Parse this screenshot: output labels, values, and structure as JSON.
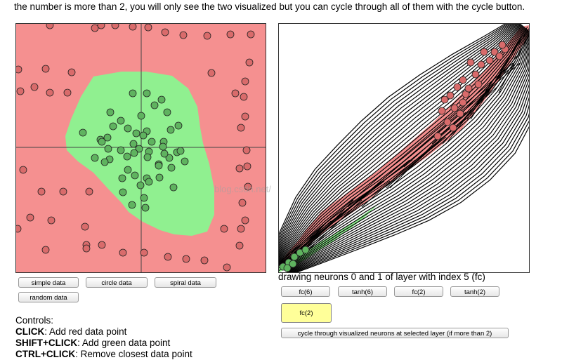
{
  "intro_text": "the number is more than 2, you will only see the two visualized but you can cycle through all of them with the cycle button.",
  "data_buttons": [
    "simple data",
    "circle data",
    "spiral data",
    "random data"
  ],
  "layer_caption": "drawing neurons 0 and 1 of layer with index 5 (fc)",
  "layer_buttons": [
    "fc(6)",
    "tanh(6)",
    "fc(2)",
    "tanh(2)"
  ],
  "selected_layer_button": "fc(2)",
  "cycle_button": "cycle through visualized neurons at selected layer (if more than 2)",
  "controls": {
    "title": "Controls:",
    "lines": [
      {
        "key": "CLICK",
        "desc": ": Add red data point"
      },
      {
        "key": "SHIFT+CLICK",
        "desc": ": Add green data point"
      },
      {
        "key": "CTRL+CLICK",
        "desc": ": Remove closest data point"
      }
    ]
  },
  "watermark": "blog.csdn.net/",
  "colors": {
    "red_region": "#f59090",
    "green_region": "#90f090",
    "red_point": "#d96b6b",
    "green_point": "#5fb35f"
  }
}
